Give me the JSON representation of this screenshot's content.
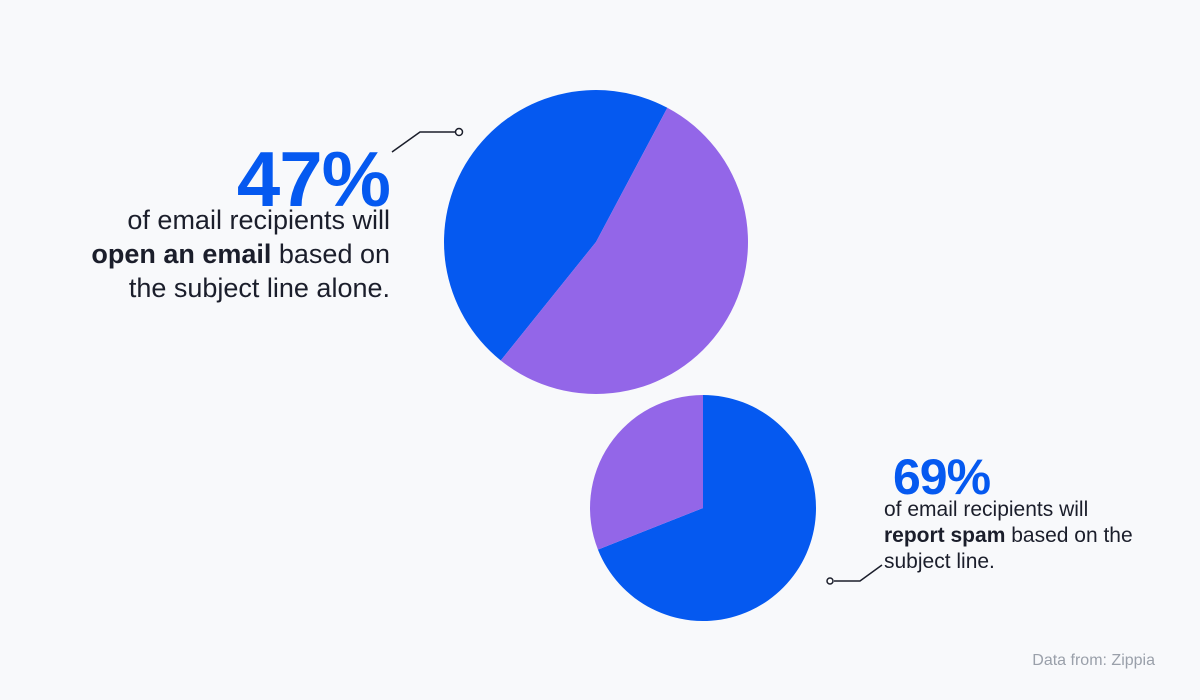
{
  "colors": {
    "blue": "#0559f0",
    "purple": "#9366e8",
    "text": "#1b1e2b",
    "muted": "#9aa0aa",
    "background": "#f8f9fb"
  },
  "stats": [
    {
      "value": "47%",
      "text_before": "of email recipients will ",
      "text_bold": "open an email",
      "text_after": " based on the subject line alone."
    },
    {
      "value": "69%",
      "text_before": "of email recipients will ",
      "text_bold": "report spam",
      "text_after": " based on the subject line."
    }
  ],
  "source": "Data from: Zippia",
  "chart_data": [
    {
      "type": "pie",
      "title": "",
      "series": [
        {
          "value": 47,
          "color": "#0559f0"
        },
        {
          "value": 53,
          "color": "#9366e8"
        }
      ]
    },
    {
      "type": "pie",
      "title": "",
      "series": [
        {
          "value": 69,
          "color": "#0559f0"
        },
        {
          "value": 31,
          "color": "#9366e8"
        }
      ]
    }
  ]
}
